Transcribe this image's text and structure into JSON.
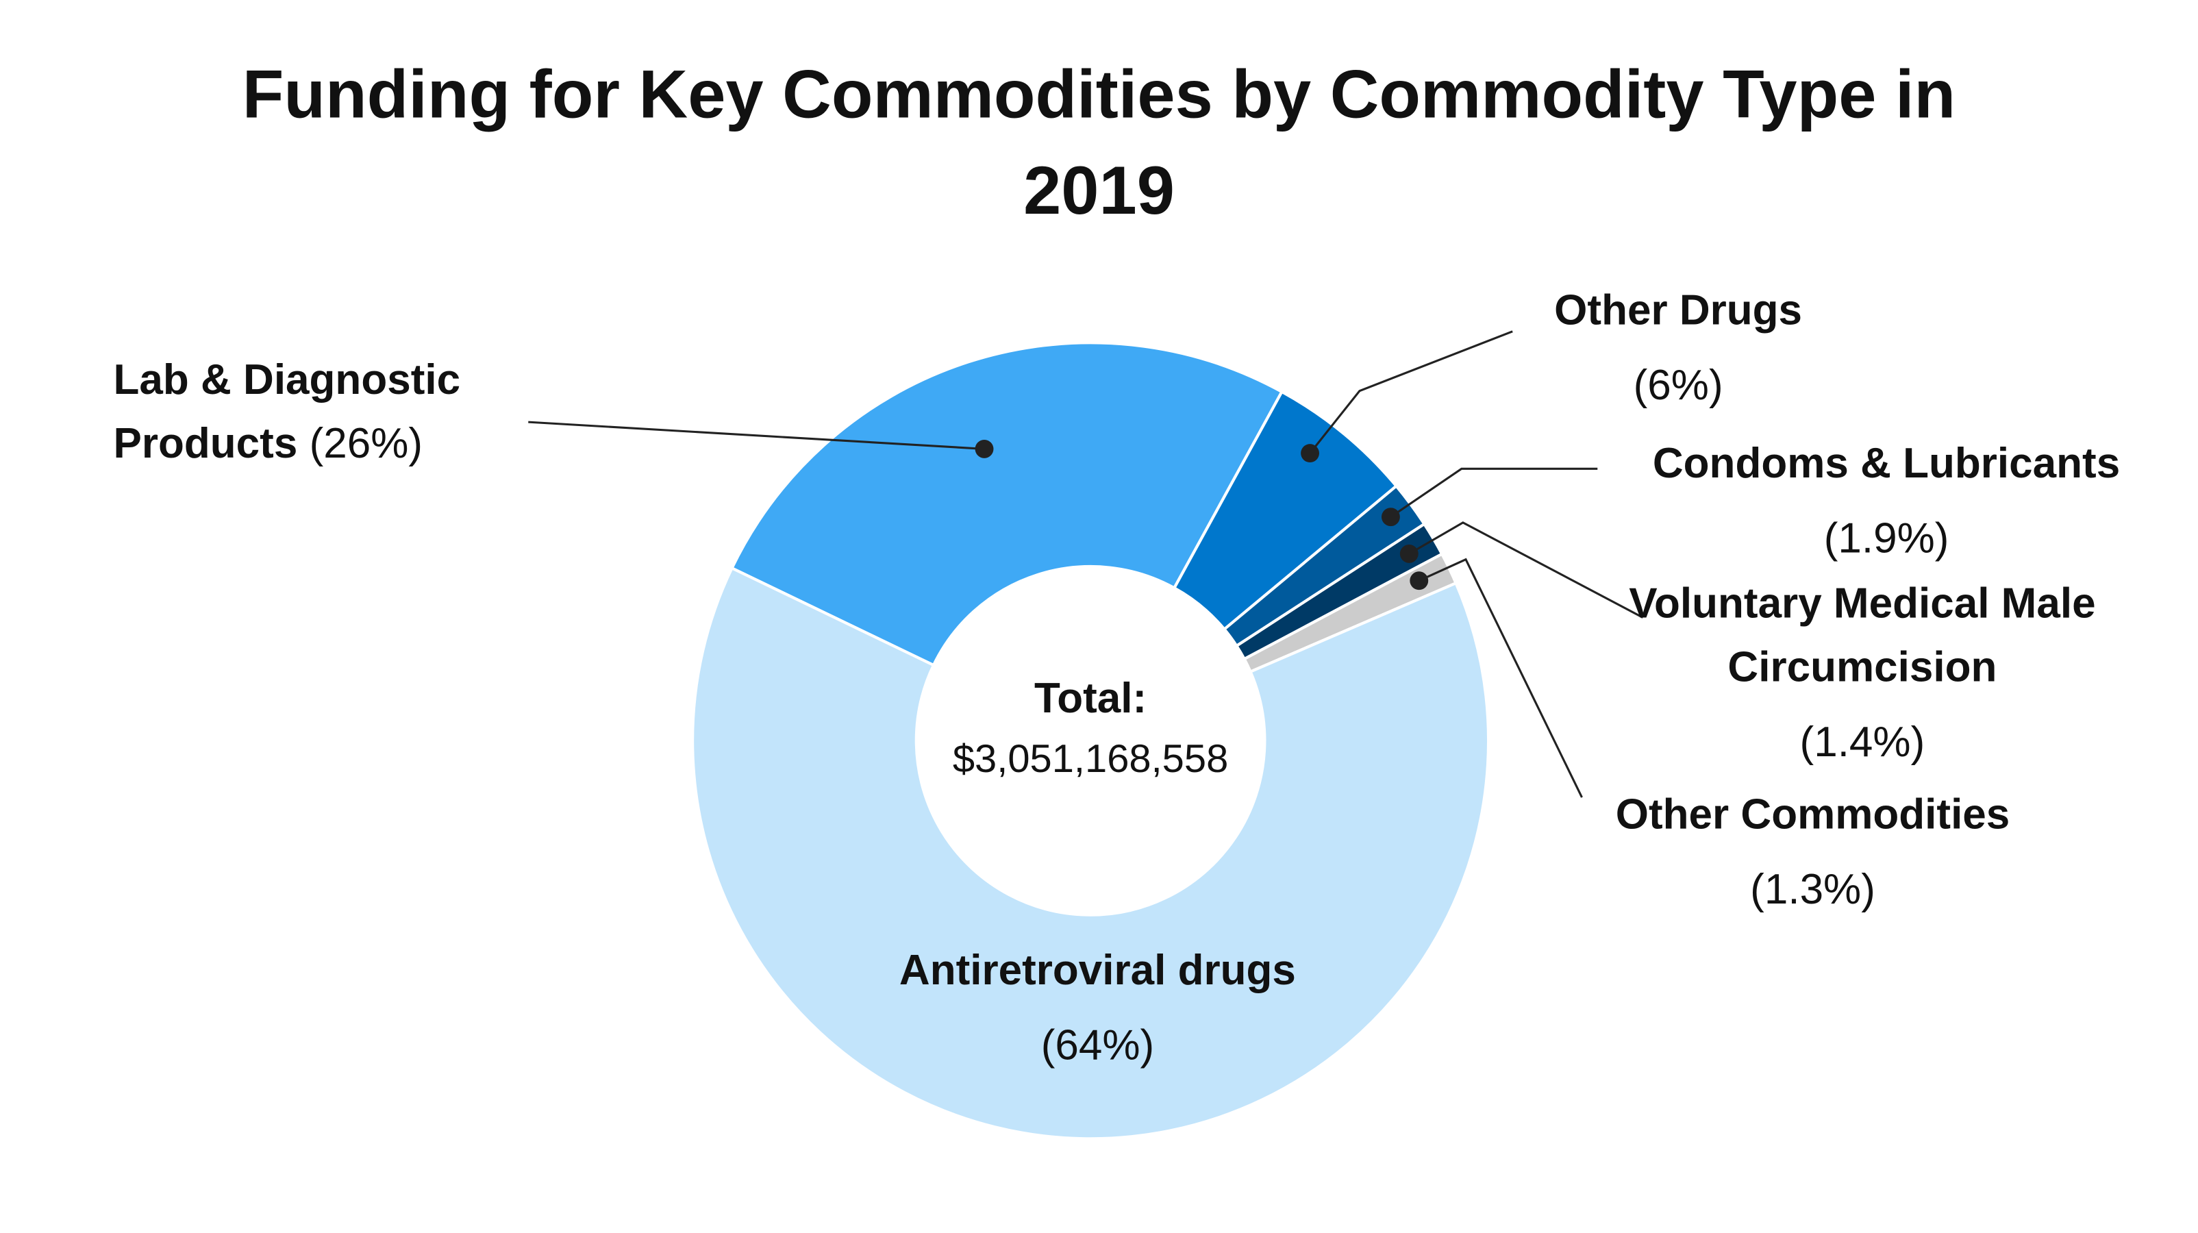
{
  "chart_data": {
    "type": "pie",
    "title": "Funding for Key Commodities by Commodity Type in 2019",
    "categories": [
      "Lab & Diagnostic Products",
      "Other Drugs",
      "Condoms & Lubricants",
      "Voluntary Medical Male Circumcision",
      "Other Commodities",
      "Antiretroviral drugs"
    ],
    "values": [
      26,
      6,
      1.9,
      1.4,
      1.3,
      64
    ],
    "value_labels": [
      "(26%)",
      "(6%)",
      "(1.9%)",
      "(1.4%)",
      "(1.3%)",
      "(64%)"
    ],
    "colors": [
      "#3fa9f5",
      "#0077cc",
      "#005a9c",
      "#003a66",
      "#cccccc",
      "#c2e4fb"
    ],
    "center_label": "Total:",
    "center_value": "$3,051,168,558"
  }
}
